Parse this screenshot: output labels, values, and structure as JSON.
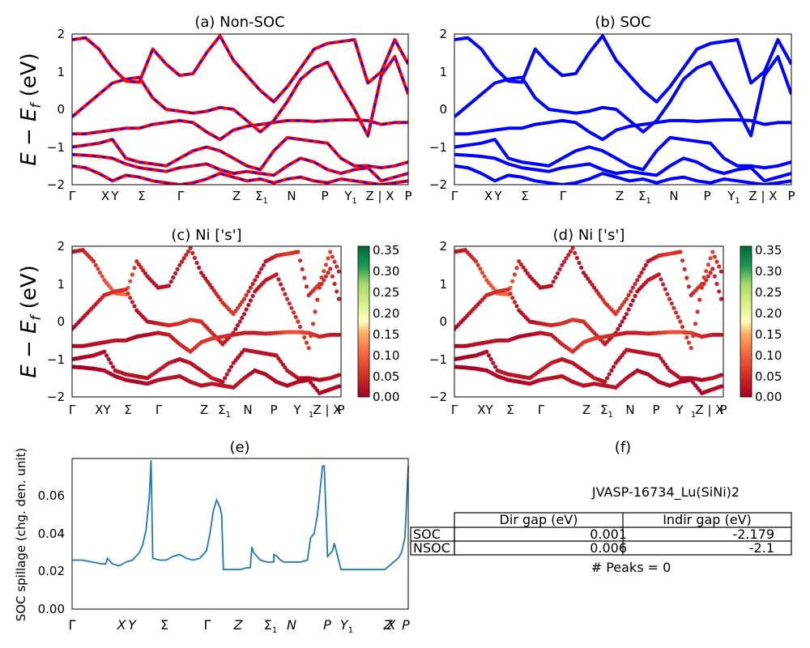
{
  "figure": {
    "ylabel_main": "E − E",
    "ylabel_sub": "f",
    "ylabel_unit": " (eV)"
  },
  "kpath_top": [
    "Γ",
    "X",
    "Y",
    "Σ",
    "Γ",
    "Z",
    "Σ",
    "N",
    "P",
    "Y",
    "Z | X",
    "P"
  ],
  "kpath_mid": [
    "Γ",
    "XY",
    "Σ",
    "Γ",
    "Z",
    "Σ",
    "N",
    "P",
    "Y",
    "Z | X",
    "P"
  ],
  "kpath_bot": [
    "Γ",
    "X",
    "Y",
    "Σ",
    "Γ",
    "Z",
    "Σ",
    "N",
    "P",
    "Y",
    "Z",
    "X",
    "P"
  ],
  "colorbar": {
    "ticks": [
      "0.35",
      "0.30",
      "0.25",
      "0.20",
      "0.15",
      "0.10",
      "0.05",
      "0.00"
    ]
  },
  "gap_table": {
    "title": "JVASP-16734_Lu(SiNi)2",
    "headers": [
      "Dir gap (eV)",
      "Indir gap (eV)"
    ],
    "rows": [
      {
        "label": "SOC",
        "dir": "0.001",
        "indir": "-2.179"
      },
      {
        "label": "NSOC",
        "dir": "0.006",
        "indir": "-2.1"
      }
    ],
    "peaks": "# Peaks = 0"
  },
  "chart_data": [
    {
      "type": "line",
      "panel": "(a) Non-SOC",
      "title": "(a) Non-SOC",
      "ylim": [
        -2,
        2
      ],
      "yticks": [
        "2",
        "1",
        "0",
        "−1",
        "−2"
      ],
      "colors": {
        "nonsoc": "#ff0000",
        "soc_overlay": "#0000ff"
      },
      "bands": [
        [
          1.85,
          1.9,
          1.6,
          1.1,
          0.75,
          0.72,
          1.6,
          1.2,
          0.9,
          0.95,
          1.5,
          1.95,
          1.3,
          0.9,
          0.5,
          0.2,
          0.6,
          1.1,
          1.6,
          1.75,
          1.8,
          1.85,
          0.7,
          1.0,
          1.85,
          1.2
        ],
        [
          -0.2,
          0.1,
          0.4,
          0.7,
          0.8,
          0.85,
          0.3,
          0.0,
          -0.05,
          -0.1,
          -0.05,
          0.05,
          0.0,
          -0.3,
          -0.6,
          -0.3,
          0.2,
          0.8,
          1.1,
          1.25,
          0.6,
          0.0,
          -0.7,
          0.9,
          1.4,
          0.4
        ],
        [
          -0.65,
          -0.65,
          -0.6,
          -0.55,
          -0.5,
          -0.5,
          -0.4,
          -0.35,
          -0.3,
          -0.35,
          -0.6,
          -0.8,
          -0.55,
          -0.45,
          -0.4,
          -0.35,
          -0.3,
          -0.3,
          -0.32,
          -0.3,
          -0.28,
          -0.28,
          -0.3,
          -0.4,
          -0.35,
          -0.35
        ],
        [
          -1.0,
          -0.95,
          -0.9,
          -0.8,
          -1.3,
          -1.4,
          -1.45,
          -1.5,
          -1.3,
          -1.1,
          -1.0,
          -1.1,
          -1.3,
          -1.5,
          -1.6,
          -1.1,
          -0.75,
          -0.8,
          -0.85,
          -0.9,
          -1.3,
          -1.5,
          -1.5,
          -1.55,
          -1.5,
          -1.4
        ],
        [
          -1.2,
          -1.22,
          -1.25,
          -1.3,
          -1.45,
          -1.55,
          -1.6,
          -1.65,
          -1.55,
          -1.5,
          -1.45,
          -1.6,
          -1.7,
          -1.65,
          -1.7,
          -1.75,
          -1.5,
          -1.3,
          -1.4,
          -1.6,
          -1.7,
          -1.6,
          -1.55,
          -1.9,
          -1.8,
          -1.7
        ],
        [
          -1.5,
          -1.55,
          -1.7,
          -1.9,
          -1.75,
          -1.8,
          -1.9,
          -1.95,
          -2.0,
          -1.95,
          -1.85,
          -1.7,
          -1.8,
          -1.9,
          -1.85,
          -1.95,
          -1.85,
          -1.8,
          -1.9,
          -1.95,
          -1.85,
          -1.9,
          -1.95,
          -2.0,
          -1.95,
          -1.9
        ]
      ]
    },
    {
      "type": "line",
      "panel": "(b) SOC",
      "title": "(b) SOC",
      "ylim": [
        -2,
        2
      ],
      "yticks": [
        "2",
        "1",
        "0",
        "−1",
        "−2"
      ],
      "colors": {
        "soc": "#0000ff"
      },
      "bands": [
        [
          1.85,
          1.9,
          1.6,
          1.1,
          0.75,
          0.72,
          1.6,
          1.2,
          0.9,
          0.95,
          1.5,
          1.95,
          1.3,
          0.9,
          0.5,
          0.2,
          0.6,
          1.1,
          1.6,
          1.75,
          1.8,
          1.85,
          0.7,
          1.0,
          1.85,
          1.2
        ],
        [
          -0.2,
          0.1,
          0.4,
          0.7,
          0.8,
          0.85,
          0.3,
          0.0,
          -0.05,
          -0.1,
          -0.05,
          0.05,
          0.0,
          -0.3,
          -0.6,
          -0.3,
          0.2,
          0.8,
          1.1,
          1.25,
          0.6,
          0.0,
          -0.7,
          0.9,
          1.4,
          0.4
        ],
        [
          -0.65,
          -0.65,
          -0.6,
          -0.55,
          -0.5,
          -0.5,
          -0.4,
          -0.35,
          -0.3,
          -0.35,
          -0.6,
          -0.8,
          -0.55,
          -0.45,
          -0.4,
          -0.35,
          -0.3,
          -0.3,
          -0.32,
          -0.3,
          -0.28,
          -0.28,
          -0.3,
          -0.4,
          -0.35,
          -0.35
        ],
        [
          -1.0,
          -0.95,
          -0.9,
          -0.8,
          -1.3,
          -1.4,
          -1.45,
          -1.5,
          -1.3,
          -1.1,
          -1.0,
          -1.1,
          -1.3,
          -1.5,
          -1.6,
          -1.1,
          -0.75,
          -0.8,
          -0.85,
          -0.9,
          -1.3,
          -1.5,
          -1.5,
          -1.55,
          -1.5,
          -1.4
        ],
        [
          -1.2,
          -1.22,
          -1.25,
          -1.3,
          -1.45,
          -1.55,
          -1.6,
          -1.65,
          -1.55,
          -1.5,
          -1.45,
          -1.6,
          -1.7,
          -1.65,
          -1.7,
          -1.75,
          -1.5,
          -1.3,
          -1.4,
          -1.6,
          -1.7,
          -1.6,
          -1.55,
          -1.9,
          -1.8,
          -1.7
        ],
        [
          -1.5,
          -1.55,
          -1.7,
          -1.9,
          -1.75,
          -1.8,
          -1.9,
          -1.95,
          -2.0,
          -1.95,
          -1.85,
          -1.7,
          -1.8,
          -1.9,
          -1.85,
          -1.95,
          -1.85,
          -1.8,
          -1.9,
          -1.95,
          -1.85,
          -1.9,
          -1.95,
          -2.0,
          -1.95,
          -1.9
        ]
      ]
    },
    {
      "type": "scatter",
      "panel": "(c) Ni ['s']",
      "title": "(c)  Ni ['s']",
      "ylim": [
        -2,
        2
      ],
      "yticks": [
        "2",
        "1",
        "0",
        "−1",
        "−2"
      ],
      "colorscale": "RdYlGn",
      "clim": [
        0,
        0.35
      ],
      "bands": [
        [
          1.85,
          1.9,
          1.6,
          1.1,
          0.75,
          0.72,
          1.6,
          1.2,
          0.9,
          0.95,
          1.5,
          1.95,
          1.3,
          0.9,
          0.5,
          0.2,
          0.6,
          1.1,
          1.6,
          1.75,
          1.8,
          1.85,
          0.7,
          1.0,
          1.85,
          1.2
        ],
        [
          -0.2,
          0.1,
          0.4,
          0.7,
          0.8,
          0.85,
          0.3,
          0.0,
          -0.05,
          -0.1,
          -0.05,
          0.05,
          0.0,
          -0.3,
          -0.6,
          -0.3,
          0.2,
          0.8,
          1.1,
          1.25,
          0.6,
          0.0,
          -0.7,
          0.9,
          1.4,
          0.4
        ],
        [
          -0.65,
          -0.65,
          -0.6,
          -0.55,
          -0.5,
          -0.5,
          -0.4,
          -0.35,
          -0.3,
          -0.35,
          -0.6,
          -0.8,
          -0.55,
          -0.45,
          -0.4,
          -0.35,
          -0.3,
          -0.3,
          -0.32,
          -0.3,
          -0.28,
          -0.28,
          -0.3,
          -0.4,
          -0.35,
          -0.35
        ],
        [
          -1.0,
          -0.95,
          -0.9,
          -0.8,
          -1.3,
          -1.4,
          -1.45,
          -1.5,
          -1.3,
          -1.1,
          -1.0,
          -1.1,
          -1.3,
          -1.5,
          -1.6,
          -1.1,
          -0.75,
          -0.8,
          -0.85,
          -0.9,
          -1.3,
          -1.5,
          -1.5,
          -1.55,
          -1.5,
          -1.4
        ],
        [
          -1.2,
          -1.22,
          -1.25,
          -1.3,
          -1.45,
          -1.55,
          -1.6,
          -1.65,
          -1.55,
          -1.5,
          -1.45,
          -1.6,
          -1.7,
          -1.65,
          -1.7,
          -1.75,
          -1.5,
          -1.3,
          -1.4,
          -1.6,
          -1.7,
          -1.6,
          -1.55,
          -1.9,
          -1.8,
          -1.7
        ]
      ],
      "weights": [
        [
          0.02,
          0.03,
          0.05,
          0.08,
          0.1,
          0.1,
          0.04,
          0.02,
          0.02,
          0.02,
          0.03,
          0.04,
          0.02,
          0.03,
          0.05,
          0.06,
          0.05,
          0.03,
          0.02,
          0.04,
          0.06,
          0.05,
          0.04,
          0.06,
          0.07,
          0.03
        ],
        [
          0.01,
          0.02,
          0.03,
          0.04,
          0.05,
          0.05,
          0.02,
          0.02,
          0.03,
          0.04,
          0.05,
          0.06,
          0.05,
          0.04,
          0.03,
          0.02,
          0.02,
          0.02,
          0.03,
          0.03,
          0.04,
          0.05,
          0.06,
          0.05,
          0.04,
          0.03
        ],
        [
          0.01,
          0.01,
          0.02,
          0.02,
          0.02,
          0.02,
          0.01,
          0.01,
          0.02,
          0.03,
          0.04,
          0.05,
          0.06,
          0.06,
          0.05,
          0.04,
          0.03,
          0.03,
          0.04,
          0.05,
          0.08,
          0.08,
          0.06,
          0.04,
          0.03,
          0.02
        ],
        [
          0.0,
          0.0,
          0.01,
          0.01,
          0.02,
          0.02,
          0.02,
          0.02,
          0.03,
          0.03,
          0.02,
          0.02,
          0.02,
          0.03,
          0.02,
          0.02,
          0.02,
          0.02,
          0.02,
          0.02,
          0.02,
          0.02,
          0.01,
          0.01,
          0.02,
          0.02
        ],
        [
          0.0,
          0.0,
          0.0,
          0.01,
          0.01,
          0.01,
          0.01,
          0.01,
          0.02,
          0.02,
          0.02,
          0.02,
          0.02,
          0.02,
          0.02,
          0.02,
          0.02,
          0.01,
          0.01,
          0.01,
          0.01,
          0.01,
          0.01,
          0.01,
          0.01,
          0.01
        ]
      ]
    },
    {
      "type": "scatter",
      "panel": "(d) Ni ['s']",
      "title": "(d) Ni ['s']",
      "ylim": [
        -2,
        2
      ],
      "yticks": [
        "2",
        "1",
        "0",
        "−1",
        "−2"
      ],
      "colorscale": "RdYlGn",
      "clim": [
        0,
        0.35
      ],
      "bands": [
        [
          1.85,
          1.9,
          1.6,
          1.1,
          0.75,
          0.72,
          1.6,
          1.2,
          0.9,
          0.95,
          1.5,
          1.95,
          1.3,
          0.9,
          0.5,
          0.2,
          0.6,
          1.1,
          1.6,
          1.75,
          1.8,
          1.85,
          0.7,
          1.0,
          1.85,
          1.2
        ],
        [
          -0.2,
          0.1,
          0.4,
          0.7,
          0.8,
          0.85,
          0.3,
          0.0,
          -0.05,
          -0.1,
          -0.05,
          0.05,
          0.0,
          -0.3,
          -0.6,
          -0.3,
          0.2,
          0.8,
          1.1,
          1.25,
          0.6,
          0.0,
          -0.7,
          0.9,
          1.4,
          0.4
        ],
        [
          -0.65,
          -0.65,
          -0.6,
          -0.55,
          -0.5,
          -0.5,
          -0.4,
          -0.35,
          -0.3,
          -0.35,
          -0.6,
          -0.8,
          -0.55,
          -0.45,
          -0.4,
          -0.35,
          -0.3,
          -0.3,
          -0.32,
          -0.3,
          -0.28,
          -0.28,
          -0.3,
          -0.4,
          -0.35,
          -0.35
        ],
        [
          -1.0,
          -0.95,
          -0.9,
          -0.8,
          -1.3,
          -1.4,
          -1.45,
          -1.5,
          -1.3,
          -1.1,
          -1.0,
          -1.1,
          -1.3,
          -1.5,
          -1.6,
          -1.1,
          -0.75,
          -0.8,
          -0.85,
          -0.9,
          -1.3,
          -1.5,
          -1.5,
          -1.55,
          -1.5,
          -1.4
        ],
        [
          -1.2,
          -1.22,
          -1.25,
          -1.3,
          -1.45,
          -1.55,
          -1.6,
          -1.65,
          -1.55,
          -1.5,
          -1.45,
          -1.6,
          -1.7,
          -1.65,
          -1.7,
          -1.75,
          -1.5,
          -1.3,
          -1.4,
          -1.6,
          -1.7,
          -1.6,
          -1.55,
          -1.9,
          -1.8,
          -1.7
        ]
      ],
      "weights": [
        [
          0.02,
          0.03,
          0.05,
          0.08,
          0.1,
          0.1,
          0.04,
          0.02,
          0.02,
          0.02,
          0.03,
          0.04,
          0.02,
          0.03,
          0.05,
          0.06,
          0.05,
          0.03,
          0.02,
          0.04,
          0.06,
          0.05,
          0.04,
          0.06,
          0.07,
          0.03
        ],
        [
          0.01,
          0.02,
          0.03,
          0.04,
          0.05,
          0.05,
          0.02,
          0.02,
          0.03,
          0.04,
          0.05,
          0.06,
          0.05,
          0.04,
          0.03,
          0.02,
          0.02,
          0.02,
          0.03,
          0.03,
          0.04,
          0.05,
          0.06,
          0.05,
          0.04,
          0.03
        ],
        [
          0.01,
          0.01,
          0.02,
          0.02,
          0.02,
          0.02,
          0.01,
          0.01,
          0.02,
          0.03,
          0.04,
          0.05,
          0.06,
          0.06,
          0.05,
          0.04,
          0.03,
          0.03,
          0.04,
          0.05,
          0.08,
          0.08,
          0.06,
          0.04,
          0.03,
          0.02
        ],
        [
          0.0,
          0.0,
          0.01,
          0.01,
          0.02,
          0.02,
          0.02,
          0.02,
          0.03,
          0.03,
          0.02,
          0.02,
          0.02,
          0.03,
          0.02,
          0.02,
          0.02,
          0.02,
          0.02,
          0.02,
          0.02,
          0.02,
          0.01,
          0.01,
          0.02,
          0.02
        ],
        [
          0.0,
          0.0,
          0.0,
          0.01,
          0.01,
          0.01,
          0.01,
          0.01,
          0.02,
          0.02,
          0.02,
          0.02,
          0.02,
          0.02,
          0.02,
          0.02,
          0.02,
          0.01,
          0.01,
          0.01,
          0.01,
          0.01,
          0.01,
          0.01,
          0.01,
          0.01
        ]
      ]
    },
    {
      "type": "line",
      "panel": "(e)",
      "title": "(e)",
      "ylabel": "SOC spillage (chg. den. unit)",
      "ylim": [
        0,
        0.08
      ],
      "yticks": [
        "0.00",
        "0.02",
        "0.04",
        "0.06"
      ],
      "color": "#1f77b4",
      "x": [
        0,
        0.03,
        0.06,
        0.09,
        0.1,
        0.105,
        0.12,
        0.14,
        0.16,
        0.18,
        0.2,
        0.21,
        0.22,
        0.23,
        0.235,
        0.24,
        0.26,
        0.28,
        0.3,
        0.32,
        0.34,
        0.36,
        0.38,
        0.4,
        0.41,
        0.42,
        0.43,
        0.44,
        0.445,
        0.45,
        0.48,
        0.5,
        0.52,
        0.53,
        0.535,
        0.54,
        0.56,
        0.58,
        0.6,
        0.6,
        0.61,
        0.62,
        0.63,
        0.64,
        0.66,
        0.68,
        0.7,
        0.71,
        0.72,
        0.73,
        0.74,
        0.745,
        0.75,
        0.76,
        0.77,
        0.775,
        0.78,
        0.8,
        0.83,
        0.86,
        0.89,
        0.92,
        0.93,
        0.95,
        0.97,
        0.98,
        0.99,
        1.0
      ],
      "y": [
        0.026,
        0.026,
        0.025,
        0.024,
        0.024,
        0.027,
        0.024,
        0.023,
        0.025,
        0.026,
        0.03,
        0.034,
        0.042,
        0.06,
        0.079,
        0.027,
        0.026,
        0.026,
        0.028,
        0.029,
        0.027,
        0.026,
        0.027,
        0.031,
        0.04,
        0.052,
        0.058,
        0.054,
        0.05,
        0.021,
        0.021,
        0.021,
        0.022,
        0.022,
        0.033,
        0.03,
        0.026,
        0.025,
        0.025,
        0.029,
        0.028,
        0.026,
        0.025,
        0.025,
        0.025,
        0.025,
        0.026,
        0.038,
        0.04,
        0.05,
        0.067,
        0.076,
        0.076,
        0.028,
        0.03,
        0.031,
        0.035,
        0.021,
        0.021,
        0.021,
        0.021,
        0.021,
        0.021,
        0.024,
        0.027,
        0.03,
        0.038,
        0.076
      ]
    }
  ]
}
